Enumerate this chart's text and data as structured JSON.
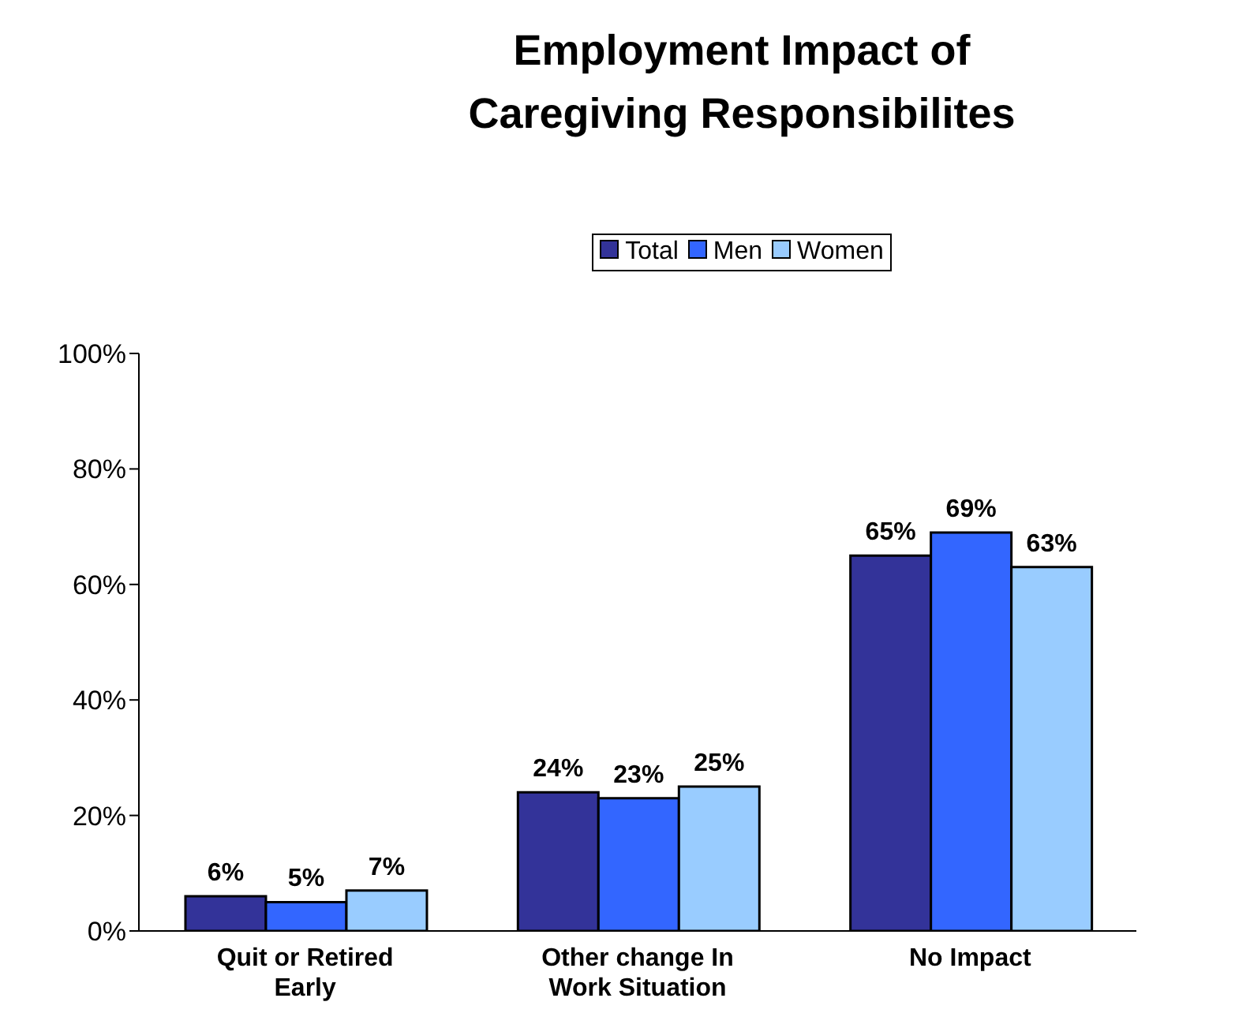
{
  "chart_data": {
    "type": "bar",
    "title": "Employment Impact of Caregiving Responsibilites",
    "categories": [
      "Quit or Retired Early",
      "Other change In Work Situation",
      "No Impact"
    ],
    "series": [
      {
        "name": "Total",
        "color": "#333399",
        "values": [
          6,
          24,
          65
        ],
        "value_labels": [
          "6%",
          "24%",
          "65%"
        ]
      },
      {
        "name": "Men",
        "color": "#3366ff",
        "values": [
          5,
          23,
          69
        ],
        "value_labels": [
          "5%",
          "23%",
          "69%"
        ]
      },
      {
        "name": "Women",
        "color": "#99ccff",
        "values": [
          7,
          25,
          63
        ],
        "value_labels": [
          "7%",
          "25%",
          "63%"
        ]
      }
    ],
    "ylim": [
      0,
      100
    ],
    "yticks": [
      {
        "value": 0,
        "label": "0%"
      },
      {
        "value": 20,
        "label": "20%"
      },
      {
        "value": 40,
        "label": "40%"
      },
      {
        "value": 60,
        "label": "60%"
      },
      {
        "value": 80,
        "label": "80%"
      },
      {
        "value": 100,
        "label": "100%"
      }
    ],
    "grid": false,
    "legend": "top"
  }
}
